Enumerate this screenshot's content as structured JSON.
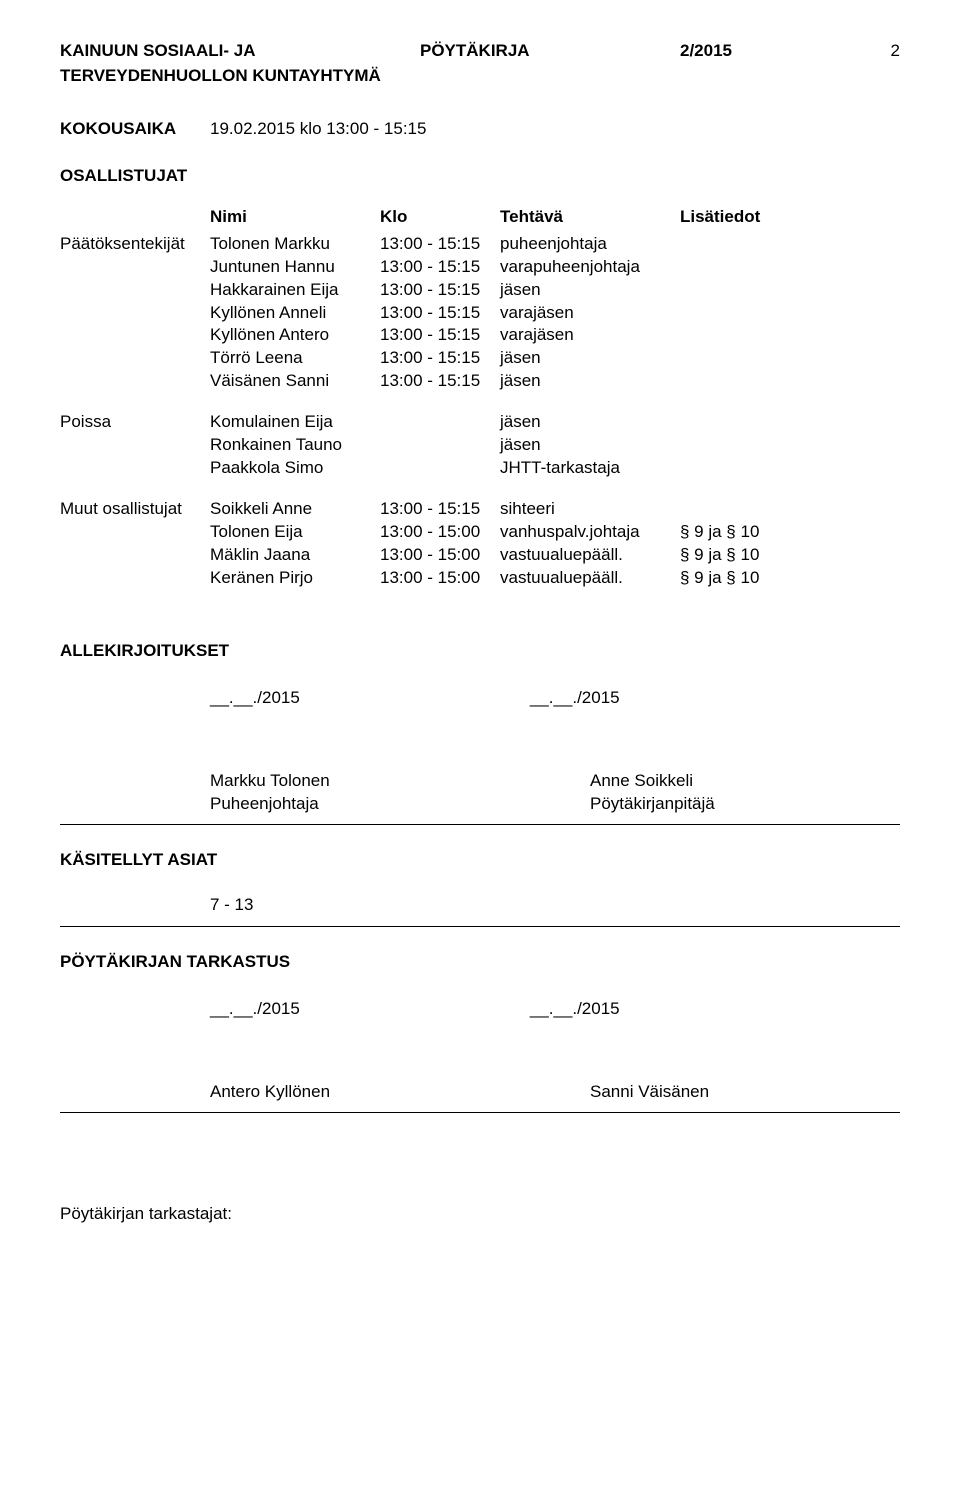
{
  "header": {
    "org_line1": "KAINUUN SOSIAALI- JA",
    "org_line2": "TERVEYDENHUOLLON KUNTAYHTYMÄ",
    "doc_type": "PÖYTÄKIRJA",
    "doc_number": "2/2015",
    "page": "2"
  },
  "meeting": {
    "kokousaika_label": "KOKOUSAIKA",
    "kokousaika_value": "19.02.2015 klo 13:00 - 15:15",
    "osallistujat_label": "OSALLISTUJAT"
  },
  "table_headers": {
    "nimi": "Nimi",
    "klo": "Klo",
    "tehtava": "Tehtävä",
    "lisatiedot": "Lisätiedot"
  },
  "paatoksentekijat": {
    "label": "Päätöksentekijät",
    "rows": [
      {
        "name": "Tolonen Markku",
        "time": "13:00 - 15:15",
        "role": "puheenjohtaja",
        "extra": ""
      },
      {
        "name": "Juntunen Hannu",
        "time": "13:00 - 15:15",
        "role": "varapuheenjohtaja",
        "extra": ""
      },
      {
        "name": "Hakkarainen  Eija",
        "time": "13:00 - 15:15",
        "role": "jäsen",
        "extra": ""
      },
      {
        "name": "Kyllönen Anneli",
        "time": "13:00 - 15:15",
        "role": "varajäsen",
        "extra": ""
      },
      {
        "name": "Kyllönen Antero",
        "time": "13:00 - 15:15",
        "role": "varajäsen",
        "extra": ""
      },
      {
        "name": "Törrö Leena",
        "time": "13:00 - 15:15",
        "role": "jäsen",
        "extra": ""
      },
      {
        "name": "Väisänen Sanni",
        "time": "13:00 - 15:15",
        "role": "jäsen",
        "extra": ""
      }
    ]
  },
  "poissa": {
    "label": "Poissa",
    "rows": [
      {
        "name": "Komulainen Eija",
        "time": "",
        "role": "jäsen",
        "extra": ""
      },
      {
        "name": "Ronkainen Tauno",
        "time": "",
        "role": "jäsen",
        "extra": ""
      },
      {
        "name": "Paakkola Simo",
        "time": "",
        "role": "JHTT-tarkastaja",
        "extra": ""
      }
    ]
  },
  "muut": {
    "label": "Muut osallistujat",
    "rows": [
      {
        "name": "Soikkeli Anne",
        "time": "13:00 - 15:15",
        "role": "sihteeri",
        "extra": ""
      },
      {
        "name": "Tolonen Eija",
        "time": "13:00 - 15:00",
        "role": "vanhuspalv.johtaja",
        "extra": "§ 9 ja § 10"
      },
      {
        "name": "Mäklin Jaana",
        "time": "13:00 - 15:00",
        "role": "vastuualuepääll.",
        "extra": "§ 9 ja § 10"
      },
      {
        "name": "Keränen Pirjo",
        "time": "13:00 - 15:00",
        "role": "vastuualuepääll.",
        "extra": "§ 9 ja § 10"
      }
    ]
  },
  "allekirjoitukset": {
    "label": "ALLEKIRJOITUKSET",
    "date1": "__.__./2015",
    "date2": "__.__./2015",
    "name1": "Markku Tolonen",
    "role1": "Puheenjohtaja",
    "name2": "Anne Soikkeli",
    "role2": "Pöytäkirjanpitäjä"
  },
  "kasitellyt": {
    "label": "KÄSITELLYT ASIAT",
    "range": "7 - 13"
  },
  "tarkastus": {
    "label": "PÖYTÄKIRJAN TARKASTUS",
    "date1": "__.__./2015",
    "date2": "__.__./2015",
    "name1": "Antero Kyllönen",
    "name2": "Sanni Väisänen"
  },
  "footer": {
    "label": "Pöytäkirjan tarkastajat:"
  }
}
